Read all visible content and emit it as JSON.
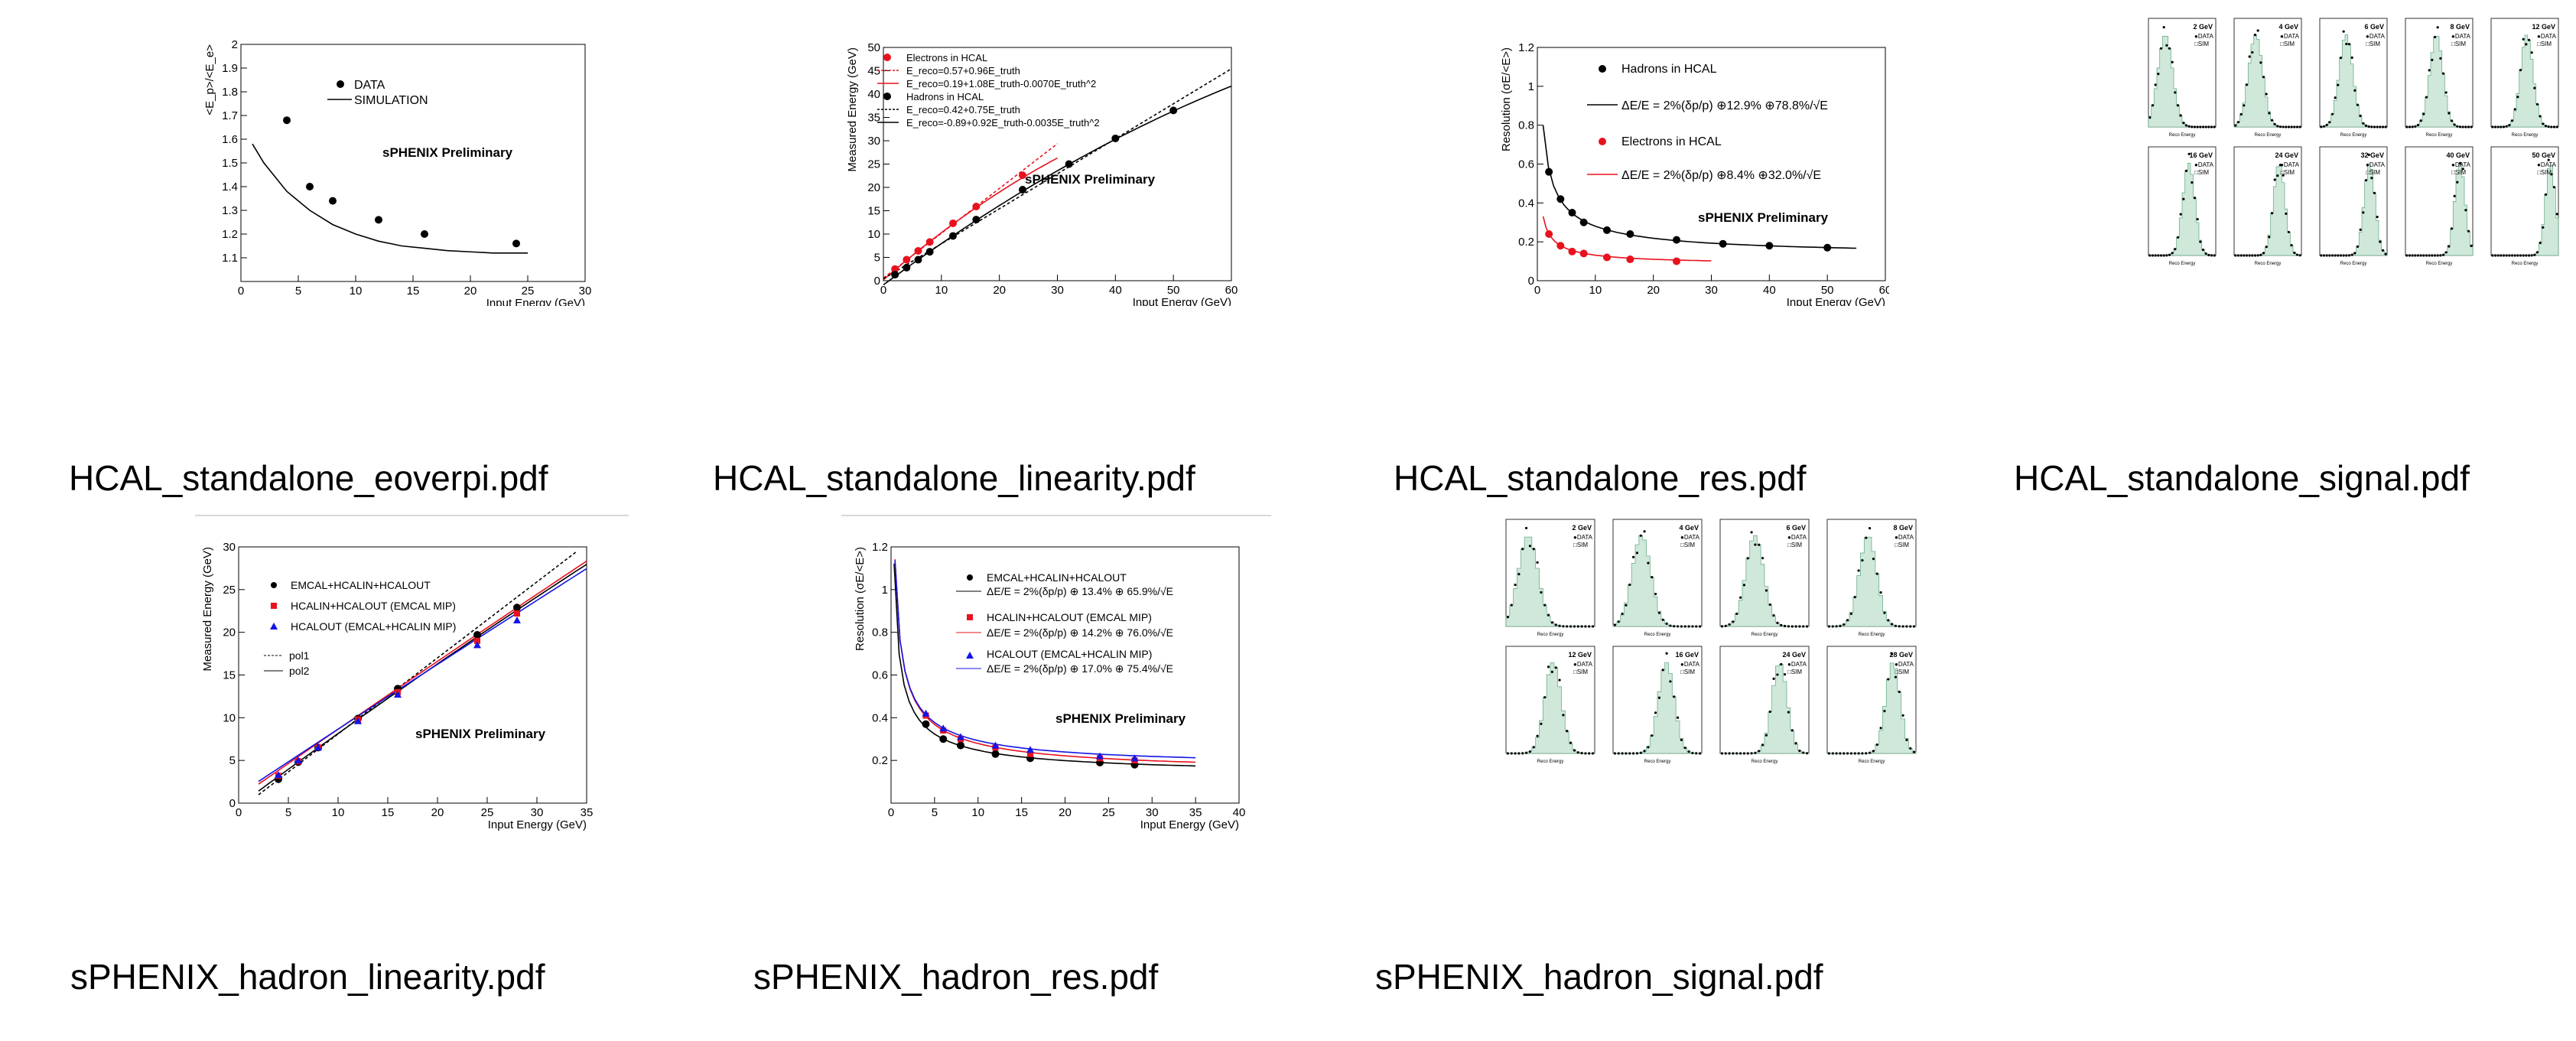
{
  "files": [
    {
      "name": "HCAL_standalone_eoverpi.pdf",
      "chart_data": {
        "type": "scatter",
        "title": "sPHENIX Preliminary",
        "xlabel": "Input Energy (GeV)",
        "ylabel": "<E_p>/<E_e>",
        "xlim": [
          0,
          30
        ],
        "ylim": [
          1.0,
          2.0
        ],
        "xticks": [
          "0",
          "5",
          "10",
          "15",
          "20",
          "25",
          "30"
        ],
        "yticks": [
          "1.1",
          "1.2",
          "1.3",
          "1.4",
          "1.5",
          "1.6",
          "1.7",
          "1.8",
          "1.9",
          "2"
        ],
        "legend": [
          "DATA",
          "SIMULATION"
        ],
        "series": [
          {
            "name": "DATA",
            "x": [
              4,
              6,
              8,
              12,
              16,
              24
            ],
            "y": [
              1.68,
              1.4,
              1.34,
              1.26,
              1.2,
              1.16
            ]
          },
          {
            "name": "SIMULATION",
            "x": [
              1,
              2,
              4,
              6,
              8,
              10,
              12,
              14,
              16,
              18,
              20,
              22,
              24,
              25
            ],
            "y": [
              1.58,
              1.5,
              1.38,
              1.3,
              1.24,
              1.2,
              1.17,
              1.15,
              1.14,
              1.13,
              1.125,
              1.12,
              1.12,
              1.12
            ]
          }
        ]
      }
    },
    {
      "name": "HCAL_standalone_linearity.pdf",
      "chart_data": {
        "type": "line",
        "title": "sPHENIX Preliminary",
        "xlabel": "Input Energy (GeV)",
        "ylabel": "Measured Energy (GeV)",
        "xlim": [
          0,
          60
        ],
        "ylim": [
          0,
          50
        ],
        "xticks": [
          "0",
          "10",
          "20",
          "30",
          "40",
          "50",
          "60"
        ],
        "yticks": [
          "0",
          "5",
          "10",
          "15",
          "20",
          "25",
          "30",
          "35",
          "40",
          "45",
          "50"
        ],
        "legend": [
          "Electrons in HCAL",
          "E_reco=0.57+0.96E_truth",
          "E_reco=0.19+1.08E_truth-0.0070E_truth^2",
          "Hadrons in HCAL",
          "E_reco=0.42+0.75E_truth",
          "E_reco=-0.89+0.92E_truth-0.0035E_truth^2"
        ],
        "series": [
          {
            "name": "Electrons in HCAL",
            "x": [
              2,
              4,
              6,
              8,
              12,
              16,
              24
            ],
            "y": [
              2.5,
              4.5,
              6.4,
              8.3,
              12.3,
              15.9,
              22.6
            ]
          },
          {
            "name": "Hadrons in HCAL",
            "x": [
              2,
              4,
              6,
              8,
              12,
              16,
              24,
              32,
              40,
              50
            ],
            "y": [
              1.3,
              2.8,
              4.5,
              6.2,
              9.6,
              13.1,
              19.5,
              25.0,
              30.5,
              36.5
            ]
          }
        ]
      }
    },
    {
      "name": "HCAL_standalone_res.pdf",
      "chart_data": {
        "type": "scatter",
        "title": "sPHENIX Preliminary",
        "xlabel": "Input Energy (GeV)",
        "ylabel": "Resolution (σE/<E>)",
        "xlim": [
          0,
          60
        ],
        "ylim": [
          0,
          1.2
        ],
        "xticks": [
          "0",
          "10",
          "20",
          "30",
          "40",
          "50",
          "60"
        ],
        "yticks": [
          "0",
          "0.2",
          "0.4",
          "0.6",
          "0.8",
          "1",
          "1.2"
        ],
        "legend": [
          "Hadrons in HCAL",
          "ΔE/E = 2%(δp/p) ⊕12.9% ⊕78.8%/√E",
          "Electrons in HCAL",
          "ΔE/E = 2%(δp/p) ⊕8.4% ⊕32.0%/√E"
        ],
        "series": [
          {
            "name": "Hadrons in HCAL",
            "x": [
              2,
              4,
              6,
              8,
              12,
              16,
              24,
              32,
              40,
              50
            ],
            "y": [
              0.56,
              0.42,
              0.35,
              0.3,
              0.26,
              0.24,
              0.21,
              0.19,
              0.18,
              0.17
            ]
          },
          {
            "name": "Electrons in HCAL",
            "x": [
              2,
              4,
              6,
              8,
              12,
              16,
              24
            ],
            "y": [
              0.24,
              0.18,
              0.15,
              0.14,
              0.12,
              0.11,
              0.1
            ]
          }
        ]
      }
    },
    {
      "name": "HCAL_standalone_signal.pdf",
      "panels": [
        "2 GeV",
        "4 GeV",
        "6 GeV",
        "8 GeV",
        "12 GeV",
        "16 GeV",
        "24 GeV",
        "32 GeV",
        "40 GeV",
        "50 GeV"
      ],
      "legend": [
        "DATA",
        "SIM"
      ]
    },
    {
      "name": "sPHENIX_hadron_linearity.pdf",
      "chart_data": {
        "type": "line",
        "title": "sPHENIX Preliminary",
        "xlabel": "Input Energy (GeV)",
        "ylabel": "Measured Energy (GeV)",
        "xlim": [
          0,
          35
        ],
        "ylim": [
          0,
          30
        ],
        "xticks": [
          "0",
          "5",
          "10",
          "15",
          "20",
          "25",
          "30",
          "35"
        ],
        "yticks": [
          "0",
          "5",
          "10",
          "15",
          "20",
          "25",
          "30"
        ],
        "legend": [
          "EMCAL+HCALIN+HCALOUT",
          "HCALIN+HCALOUT (EMCAL MIP)",
          "HCALOUT (EMCAL+HCALIN MIP)",
          "pol1",
          "pol2"
        ],
        "series": [
          {
            "name": "EMCAL+HCALIN+HCALOUT",
            "x": [
              4,
              6,
              8,
              12,
              16,
              24,
              28
            ],
            "y": [
              2.8,
              4.8,
              6.5,
              9.9,
              13.4,
              19.7,
              22.9
            ]
          },
          {
            "name": "HCALIN+HCALOUT (EMCAL MIP)",
            "x": [
              4,
              6,
              8,
              12,
              16,
              24,
              28
            ],
            "y": [
              3.2,
              4.9,
              6.5,
              9.8,
              13.0,
              19.0,
              22.2
            ]
          },
          {
            "name": "HCALOUT (EMCAL+HCALIN MIP)",
            "x": [
              4,
              6,
              8,
              12,
              16,
              24,
              28
            ],
            "y": [
              3.3,
              5.0,
              6.5,
              9.6,
              12.7,
              18.5,
              21.4
            ]
          }
        ]
      }
    },
    {
      "name": "sPHENIX_hadron_res.pdf",
      "chart_data": {
        "type": "scatter",
        "title": "sPHENIX Preliminary",
        "xlabel": "Input Energy (GeV)",
        "ylabel": "Resolution (σE/<E>)",
        "xlim": [
          0,
          40
        ],
        "ylim": [
          0,
          1.2
        ],
        "xticks": [
          "0",
          "5",
          "10",
          "15",
          "20",
          "25",
          "30",
          "35",
          "40"
        ],
        "yticks": [
          "0.2",
          "0.4",
          "0.6",
          "0.8",
          "1",
          "1.2"
        ],
        "legend": [
          "EMCAL+HCALIN+HCALOUT",
          "ΔE/E = 2%(δp/p) ⊕ 13.4% ⊕ 65.9%/√E",
          "HCALIN+HCALOUT (EMCAL MIP)",
          "ΔE/E = 2%(δp/p) ⊕ 14.2% ⊕ 76.0%/√E",
          "HCALOUT (EMCAL+HCALIN MIP)",
          "ΔE/E = 2%(δp/p) ⊕ 17.0% ⊕ 75.4%/√E"
        ],
        "series": [
          {
            "name": "EMCAL+HCALIN+HCALOUT",
            "x": [
              4,
              6,
              8,
              12,
              16,
              24,
              28
            ],
            "y": [
              0.37,
              0.3,
              0.27,
              0.23,
              0.21,
              0.19,
              0.18
            ]
          },
          {
            "name": "HCALIN+HCALOUT (EMCAL MIP)",
            "x": [
              4,
              6,
              8,
              12,
              16,
              24,
              28
            ],
            "y": [
              0.41,
              0.34,
              0.3,
              0.26,
              0.23,
              0.21,
              0.2
            ]
          },
          {
            "name": "HCALOUT (EMCAL+HCALIN MIP)",
            "x": [
              4,
              6,
              8,
              12,
              16,
              24,
              28
            ],
            "y": [
              0.42,
              0.35,
              0.31,
              0.27,
              0.25,
              0.22,
              0.21
            ]
          }
        ]
      }
    },
    {
      "name": "sPHENIX_hadron_signal.pdf",
      "panels": [
        "2 GeV",
        "4 GeV",
        "6 GeV",
        "8 GeV",
        "12 GeV",
        "16 GeV",
        "24 GeV",
        "28 GeV"
      ],
      "legend": [
        "DATA",
        "SIM"
      ]
    }
  ],
  "colors": {
    "red": "#e8121e",
    "blue": "#1414e6",
    "hist_fill": "#cfe8da",
    "hist_edge": "#6fae8c"
  }
}
